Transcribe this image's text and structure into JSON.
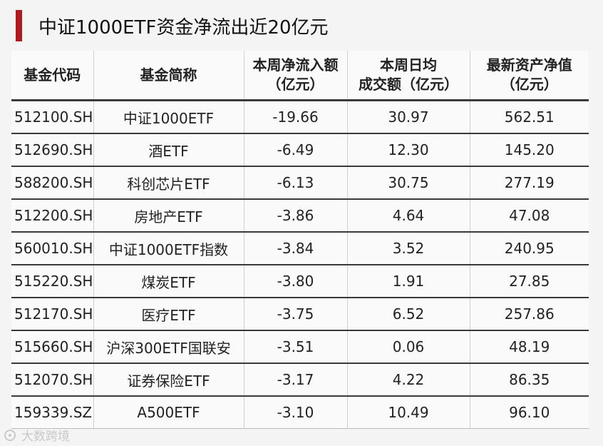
{
  "title": "中证1000ETF资金净流出近20亿元",
  "headers": {
    "code": "基金代码",
    "name": "基金简称",
    "flow_line1": "本周净流入额",
    "flow_line2": "（亿元）",
    "turnover_line1": "本周日均",
    "turnover_line2": "成交额（亿元）",
    "nav_line1": "最新资产净值",
    "nav_line2": "（亿元）"
  },
  "rows": [
    {
      "code": "512100.SH",
      "name": "中证1000ETF",
      "flow": "-19.66",
      "turnover": "30.97",
      "nav": "562.51"
    },
    {
      "code": "512690.SH",
      "name": "酒ETF",
      "flow": "-6.49",
      "turnover": "12.30",
      "nav": "145.20"
    },
    {
      "code": "588200.SH",
      "name": "科创芯片ETF",
      "flow": "-6.13",
      "turnover": "30.75",
      "nav": "277.19"
    },
    {
      "code": "512200.SH",
      "name": "房地产ETF",
      "flow": "-3.86",
      "turnover": "4.64",
      "nav": "47.08"
    },
    {
      "code": "560010.SH",
      "name": "中证1000ETF指数",
      "flow": "-3.84",
      "turnover": "3.52",
      "nav": "240.95"
    },
    {
      "code": "515220.SH",
      "name": "煤炭ETF",
      "flow": "-3.80",
      "turnover": "1.91",
      "nav": "27.85"
    },
    {
      "code": "512170.SH",
      "name": "医疗ETF",
      "flow": "-3.75",
      "turnover": "6.52",
      "nav": "257.86"
    },
    {
      "code": "515660.SH",
      "name": "沪深300ETF国联安",
      "flow": "-3.51",
      "turnover": "0.06",
      "nav": "48.19"
    },
    {
      "code": "512070.SH",
      "name": "证券保险ETF",
      "flow": "-3.17",
      "turnover": "4.22",
      "nav": "86.35"
    },
    {
      "code": "159339.SZ",
      "name": "A500ETF",
      "flow": "-3.10",
      "turnover": "10.49",
      "nav": "96.10"
    }
  ],
  "watermark": {
    "text": "大数跨境",
    "icon": "brand-logo-icon"
  },
  "colors": {
    "accent": "#b11a1a"
  }
}
